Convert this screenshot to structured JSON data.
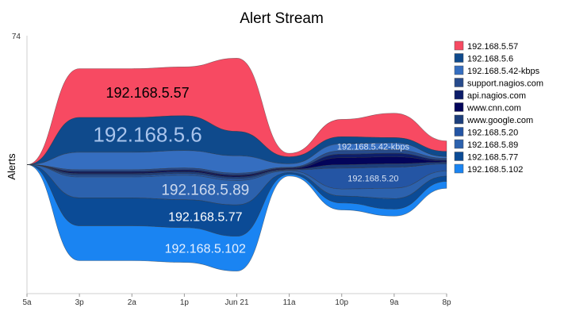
{
  "chart_data": {
    "type": "area",
    "subtype": "streamgraph",
    "title": "Alert Stream",
    "ylabel": "Alerts",
    "xlabel": "",
    "y_max_label": "74",
    "ymax": 74,
    "x_ticks": [
      "5a",
      "3p",
      "2a",
      "1p",
      "Jun 21",
      "11a",
      "10p",
      "9a",
      "8p"
    ],
    "legend_position": "right",
    "series": [
      {
        "name": "192.168.5.57",
        "color": "#f74a62",
        "values": [
          0,
          14,
          14,
          14,
          21,
          1,
          5,
          7,
          3
        ]
      },
      {
        "name": "192.168.5.6",
        "color": "#0f4a8c",
        "values": [
          0,
          10,
          10,
          10,
          7,
          2,
          2,
          1.5,
          1.5
        ]
      },
      {
        "name": "192.168.5.42-kbps",
        "color": "#356ec0",
        "values": [
          0,
          5,
          5,
          5,
          5,
          1,
          2,
          2,
          0.5
        ]
      },
      {
        "name": "support.nagios.com",
        "color": "#274b8c",
        "values": [
          0,
          0.5,
          0.5,
          0.5,
          0.5,
          0.2,
          1,
          1,
          0.5
        ]
      },
      {
        "name": "api.nagios.com",
        "color": "#0c1d6a",
        "values": [
          0,
          0.3,
          0.3,
          0.3,
          0.3,
          0.2,
          1,
          1,
          0.3
        ]
      },
      {
        "name": "www.cnn.com",
        "color": "#03045a",
        "values": [
          0,
          0.3,
          0.3,
          0.3,
          0.3,
          0.2,
          2,
          2,
          0.3
        ]
      },
      {
        "name": "www.google.com",
        "color": "#1d3f7c",
        "values": [
          0,
          0.5,
          0.5,
          0.5,
          0.5,
          0.2,
          1,
          1,
          0.5
        ]
      },
      {
        "name": "192.168.5.20",
        "color": "#2455a4",
        "values": [
          0,
          0.5,
          0.5,
          0.5,
          0.5,
          0.2,
          6,
          6,
          2
        ]
      },
      {
        "name": "192.168.5.89",
        "color": "#2c62ae",
        "values": [
          0,
          6,
          6,
          7,
          7,
          0.5,
          2,
          3,
          1.5
        ]
      },
      {
        "name": "192.168.5.77",
        "color": "#0b4b96",
        "values": [
          0,
          8,
          8,
          8,
          9,
          0.5,
          2,
          3,
          1.5
        ]
      },
      {
        "name": "192.168.5.102",
        "color": "#1a84f2",
        "values": [
          0,
          10,
          10,
          10,
          10,
          0.5,
          2,
          2,
          2
        ]
      }
    ],
    "stream_labels": [
      {
        "text": "192.168.5.57",
        "series": 0,
        "x": 2.3,
        "size": 18,
        "color": "#000000"
      },
      {
        "text": "192.168.5.6",
        "series": 1,
        "x": 2.3,
        "size": 26,
        "color": "#a9c4ec"
      },
      {
        "text": "192.168.5.89",
        "series": 8,
        "x": 3.4,
        "size": 19,
        "color": "#ccd9ee"
      },
      {
        "text": "192.168.5.77",
        "series": 9,
        "x": 3.4,
        "size": 16,
        "color": "#ffffff"
      },
      {
        "text": "192.168.5.102",
        "series": 10,
        "x": 3.4,
        "size": 16,
        "color": "#e6f0ff"
      },
      {
        "text": "192.168.5.42-kbps",
        "series": 2,
        "x": 6.6,
        "size": 11,
        "color": "#d9e3f3"
      },
      {
        "text": "192.168.5.20",
        "series": 7,
        "x": 6.6,
        "size": 11,
        "color": "#d9e3f3"
      }
    ]
  }
}
